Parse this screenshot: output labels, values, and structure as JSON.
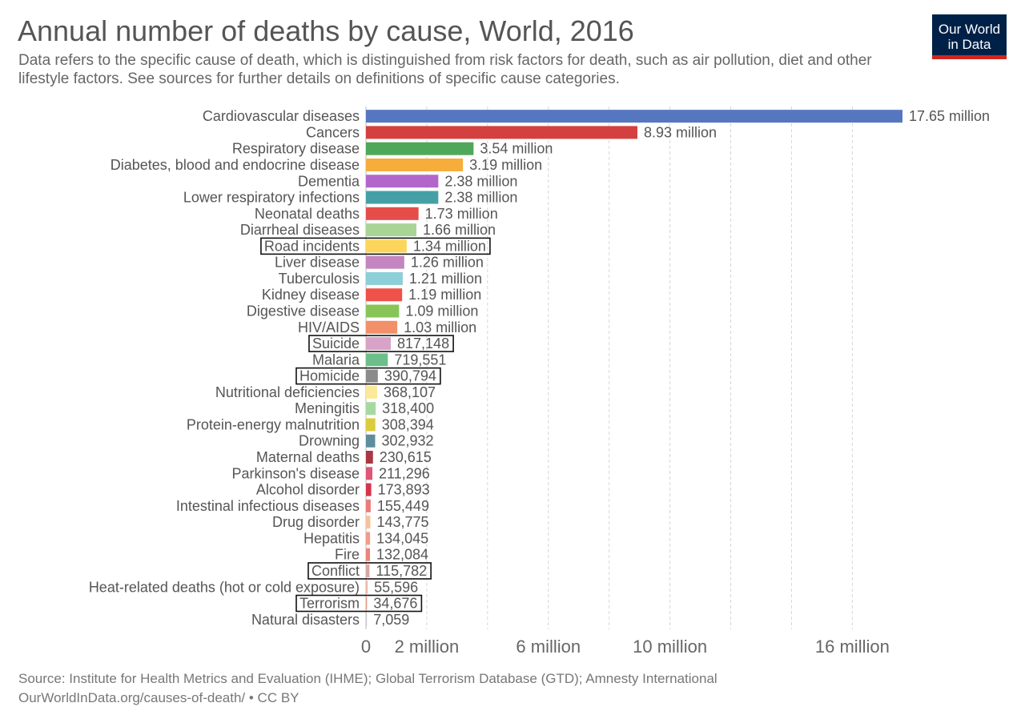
{
  "header": {
    "title": "Annual number of deaths by cause, World, 2016",
    "subtitle": "Data refers to the specific cause of death, which is distinguished from risk factors for death, such as air pollution, diet and other lifestyle factors. See sources for further details on definitions of specific cause categories."
  },
  "logo": {
    "line1": "Our World",
    "line2": "in Data",
    "bg_color": "#002147",
    "accent_color": "#ce261e"
  },
  "footer": {
    "source": "Source: Institute for Health Metrics and Evaluation (IHME); Global Terrorism Database (GTD); Amnesty International",
    "url": "OurWorldInData.org/causes-of-death/ • CC BY"
  },
  "chart_data": {
    "type": "bar",
    "orientation": "horizontal",
    "xlim": [
      0,
      17650000
    ],
    "x_ticks": [
      {
        "value": 0,
        "label": "0"
      },
      {
        "value": 2000000,
        "label": "2 million"
      },
      {
        "value": 6000000,
        "label": "6 million"
      },
      {
        "value": 10000000,
        "label": "10 million"
      },
      {
        "value": 16000000,
        "label": "16 million"
      }
    ],
    "gridline_values": [
      2000000,
      4000000,
      6000000,
      8000000,
      10000000,
      12000000,
      14000000,
      16000000
    ],
    "grid": true,
    "bars": [
      {
        "label": "Cardiovascular diseases",
        "value": 17650000,
        "value_label": "17.65 million",
        "color": "#5677c0",
        "highlighted": false
      },
      {
        "label": "Cancers",
        "value": 8930000,
        "value_label": "8.93 million",
        "color": "#d3403f",
        "highlighted": false
      },
      {
        "label": "Respiratory disease",
        "value": 3540000,
        "value_label": "3.54 million",
        "color": "#4fa85a",
        "highlighted": false
      },
      {
        "label": "Diabetes, blood and endocrine disease",
        "value": 3190000,
        "value_label": "3.19 million",
        "color": "#f7ad3c",
        "highlighted": false
      },
      {
        "label": "Dementia",
        "value": 2380000,
        "value_label": "2.38 million",
        "color": "#b366c9",
        "highlighted": false
      },
      {
        "label": "Lower respiratory infections",
        "value": 2380000,
        "value_label": "2.38 million",
        "color": "#45a0a6",
        "highlighted": false
      },
      {
        "label": "Neonatal deaths",
        "value": 1730000,
        "value_label": "1.73 million",
        "color": "#e54d4a",
        "highlighted": false
      },
      {
        "label": "Diarrheal diseases",
        "value": 1660000,
        "value_label": "1.66 million",
        "color": "#a8d596",
        "highlighted": false
      },
      {
        "label": "Road incidents",
        "value": 1340000,
        "value_label": "1.34 million",
        "color": "#fcd55a",
        "highlighted": true
      },
      {
        "label": "Liver disease",
        "value": 1260000,
        "value_label": "1.26 million",
        "color": "#c386c0",
        "highlighted": false
      },
      {
        "label": "Tuberculosis",
        "value": 1210000,
        "value_label": "1.21 million",
        "color": "#8ccfd6",
        "highlighted": false
      },
      {
        "label": "Kidney disease",
        "value": 1190000,
        "value_label": "1.19 million",
        "color": "#ef5249",
        "highlighted": false
      },
      {
        "label": "Digestive disease",
        "value": 1090000,
        "value_label": "1.09 million",
        "color": "#88c557",
        "highlighted": false
      },
      {
        "label": "HIV/AIDS",
        "value": 1030000,
        "value_label": "1.03 million",
        "color": "#f2906a",
        "highlighted": false
      },
      {
        "label": "Suicide",
        "value": 817148,
        "value_label": "817,148",
        "color": "#d9a3c9",
        "highlighted": true
      },
      {
        "label": "Malaria",
        "value": 719551,
        "value_label": "719,551",
        "color": "#6cbf8a",
        "highlighted": false
      },
      {
        "label": "Homicide",
        "value": 390794,
        "value_label": "390,794",
        "color": "#8b8b8b",
        "highlighted": true
      },
      {
        "label": "Nutritional deficiencies",
        "value": 368107,
        "value_label": "368,107",
        "color": "#fbe99a",
        "highlighted": false
      },
      {
        "label": "Meningitis",
        "value": 318400,
        "value_label": "318,400",
        "color": "#a6d9a0",
        "highlighted": false
      },
      {
        "label": "Protein-energy malnutrition",
        "value": 308394,
        "value_label": "308,394",
        "color": "#dccb3a",
        "highlighted": false
      },
      {
        "label": "Drowning",
        "value": 302932,
        "value_label": "302,932",
        "color": "#5e8d9e",
        "highlighted": false
      },
      {
        "label": "Maternal deaths",
        "value": 230615,
        "value_label": "230,615",
        "color": "#a83745",
        "highlighted": false
      },
      {
        "label": "Parkinson's disease",
        "value": 211296,
        "value_label": "211,296",
        "color": "#e0557a",
        "highlighted": false
      },
      {
        "label": "Alcohol disorder",
        "value": 173893,
        "value_label": "173,893",
        "color": "#d6344a",
        "highlighted": false
      },
      {
        "label": "Intestinal infectious diseases",
        "value": 155449,
        "value_label": "155,449",
        "color": "#ec7c7a",
        "highlighted": false
      },
      {
        "label": "Drug disorder",
        "value": 143775,
        "value_label": "143,775",
        "color": "#f6c29a",
        "highlighted": false
      },
      {
        "label": "Hepatitis",
        "value": 134045,
        "value_label": "134,045",
        "color": "#f29b87",
        "highlighted": false
      },
      {
        "label": "Fire",
        "value": 132084,
        "value_label": "132,084",
        "color": "#ee8378",
        "highlighted": false
      },
      {
        "label": "Conflict",
        "value": 115782,
        "value_label": "115,782",
        "color": "#d8a7a4",
        "highlighted": true
      },
      {
        "label": "Heat-related deaths (hot or cold exposure)",
        "value": 55596,
        "value_label": "55,596",
        "color": "#f1b7a6",
        "highlighted": false
      },
      {
        "label": "Terrorism",
        "value": 34676,
        "value_label": "34,676",
        "color": "#e89a83",
        "highlighted": true
      },
      {
        "label": "Natural disasters",
        "value": 7059,
        "value_label": "7,059",
        "color": "#cccccc",
        "highlighted": false
      }
    ]
  }
}
